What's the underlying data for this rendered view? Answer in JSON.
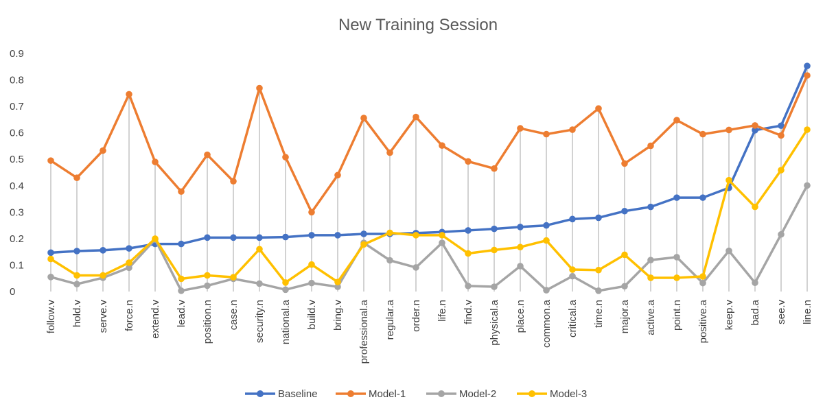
{
  "chart_data": {
    "type": "line",
    "title": "New Training Session",
    "xlabel": "",
    "ylabel": "",
    "ylim": [
      0,
      0.9
    ],
    "yticks": [
      "0",
      "0.1",
      "0.2",
      "0.3",
      "0.4",
      "0.5",
      "0.6",
      "0.7",
      "0.8",
      "0.9"
    ],
    "grid": "vertical drop lines",
    "legend": "bottom",
    "categories": [
      "follow.v",
      "hold.v",
      "serve.v",
      "force.n",
      "extend.v",
      "lead.v",
      "position.n",
      "case.n",
      "security.n",
      "national.a",
      "build.v",
      "bring.v",
      "professional.a",
      "regular.a",
      "order.n",
      "life.n",
      "find.v",
      "physical.a",
      "place.n",
      "common.a",
      "critical.a",
      "time.n",
      "major.a",
      "active.a",
      "point.n",
      "positive.a",
      "keep.v",
      "bad.a",
      "see.v",
      "line.n"
    ],
    "series": [
      {
        "name": "Baseline",
        "color": "#4472C4",
        "values": [
          0.147,
          0.153,
          0.156,
          0.163,
          0.18,
          0.18,
          0.204,
          0.204,
          0.204,
          0.206,
          0.213,
          0.213,
          0.218,
          0.218,
          0.221,
          0.225,
          0.231,
          0.237,
          0.244,
          0.25,
          0.274,
          0.279,
          0.304,
          0.32,
          0.355,
          0.355,
          0.392,
          0.61,
          0.627,
          0.853
        ]
      },
      {
        "name": "Model-1",
        "color": "#ED7D31",
        "values": [
          0.495,
          0.43,
          0.533,
          0.746,
          0.49,
          0.378,
          0.517,
          0.417,
          0.769,
          0.508,
          0.3,
          0.44,
          0.656,
          0.525,
          0.66,
          0.552,
          0.492,
          0.465,
          0.617,
          0.595,
          0.612,
          0.692,
          0.484,
          0.551,
          0.648,
          0.595,
          0.611,
          0.628,
          0.59,
          0.817
        ]
      },
      {
        "name": "Model-2",
        "color": "#A5A5A5",
        "values": [
          0.055,
          0.028,
          0.052,
          0.09,
          0.197,
          0.003,
          0.022,
          0.048,
          0.03,
          0.007,
          0.032,
          0.018,
          0.184,
          0.118,
          0.091,
          0.184,
          0.021,
          0.018,
          0.096,
          0.005,
          0.058,
          0.003,
          0.02,
          0.119,
          0.13,
          0.032,
          0.154,
          0.033,
          0.216,
          0.401
        ]
      },
      {
        "name": "Model-3",
        "color": "#FFC000",
        "values": [
          0.123,
          0.061,
          0.061,
          0.109,
          0.2,
          0.048,
          0.061,
          0.054,
          0.16,
          0.034,
          0.102,
          0.036,
          0.178,
          0.222,
          0.213,
          0.213,
          0.144,
          0.157,
          0.168,
          0.193,
          0.083,
          0.081,
          0.139,
          0.052,
          0.052,
          0.057,
          0.421,
          0.32,
          0.459,
          0.612
        ]
      }
    ]
  }
}
